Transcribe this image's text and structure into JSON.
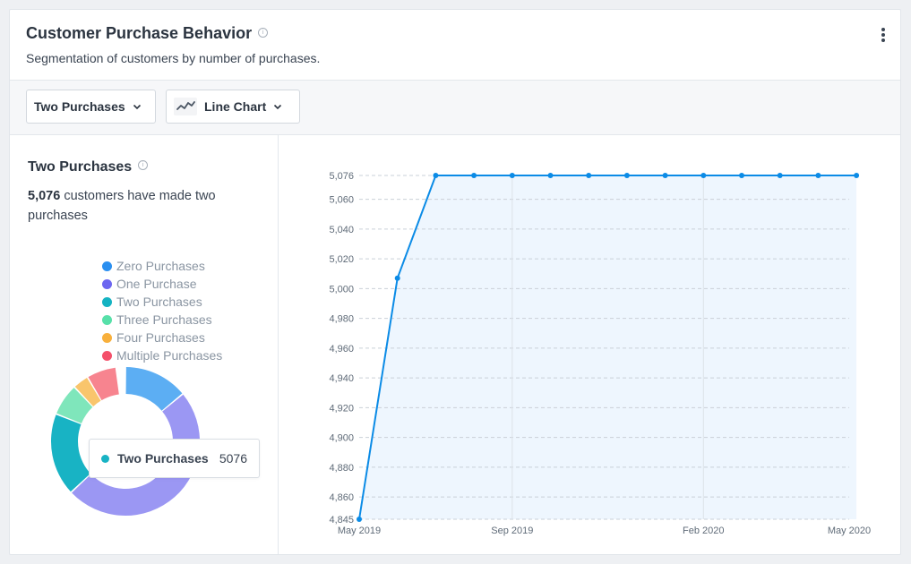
{
  "header": {
    "title": "Customer Purchase Behavior",
    "info_glyph": "i",
    "subtitle": "Segmentation of customers by number of purchases."
  },
  "toolbar": {
    "segment_select": "Two Purchases",
    "chart_type_select": "Line Chart"
  },
  "summary": {
    "title": "Two Purchases",
    "count": "5,076",
    "description": "customers have made two purchases"
  },
  "legend": [
    {
      "label": "Zero Purchases",
      "color": "#2a8ff0"
    },
    {
      "label": "One Purchase",
      "color": "#6c66f0"
    },
    {
      "label": "Two Purchases",
      "color": "#14b3c2"
    },
    {
      "label": "Three Purchases",
      "color": "#57e0a9"
    },
    {
      "label": "Four Purchases",
      "color": "#f8b03c"
    },
    {
      "label": "Multiple Purchases",
      "color": "#f4506a"
    }
  ],
  "donut_segments": [
    {
      "name": "Zero Purchases",
      "color": "#5caef3",
      "fraction": 0.14
    },
    {
      "name": "One Purchase",
      "color": "#9b97f3",
      "fraction": 0.49
    },
    {
      "name": "Two Purchases",
      "color": "#18b3c4",
      "fraction": 0.18
    },
    {
      "name": "Three Purchases",
      "color": "#7fe6bb",
      "fraction": 0.07
    },
    {
      "name": "Four Purchases",
      "color": "#f9c56c",
      "fraction": 0.035
    },
    {
      "name": "Multiple Purchases",
      "color": "#f7848f",
      "fraction": 0.065
    }
  ],
  "tooltip": {
    "label": "Two Purchases",
    "value": "5076",
    "color": "#18b3c4"
  },
  "chart_data": {
    "type": "area",
    "series": [
      {
        "values": [
          4845,
          5007,
          5076,
          5076,
          5076,
          5076,
          5076,
          5076,
          5076,
          5076,
          5076,
          5076,
          5076,
          5076
        ]
      }
    ],
    "x": [
      "2019-05-01",
      "2019-06-01",
      "2019-07-01",
      "2019-08-01",
      "2019-09-01",
      "2019-10-01",
      "2019-11-01",
      "2019-12-01",
      "2020-01-01",
      "2020-02-01",
      "2020-03-01",
      "2020-04-01",
      "2020-05-01",
      "2020-06-01"
    ],
    "x_tick_labels": [
      "May 2019",
      "Sep 2019",
      "Feb 2020",
      "May 2020"
    ],
    "y_tick_labels": [
      "4,845",
      "4,860",
      "4,880",
      "4,900",
      "4,920",
      "4,940",
      "4,960",
      "4,980",
      "5,000",
      "5,020",
      "5,040",
      "5,060",
      "5,076"
    ],
    "ylim": [
      4845,
      5076
    ],
    "line_color": "#0b8be6",
    "fill_color": "#eef6fe",
    "grid": "dashed horizontal"
  }
}
